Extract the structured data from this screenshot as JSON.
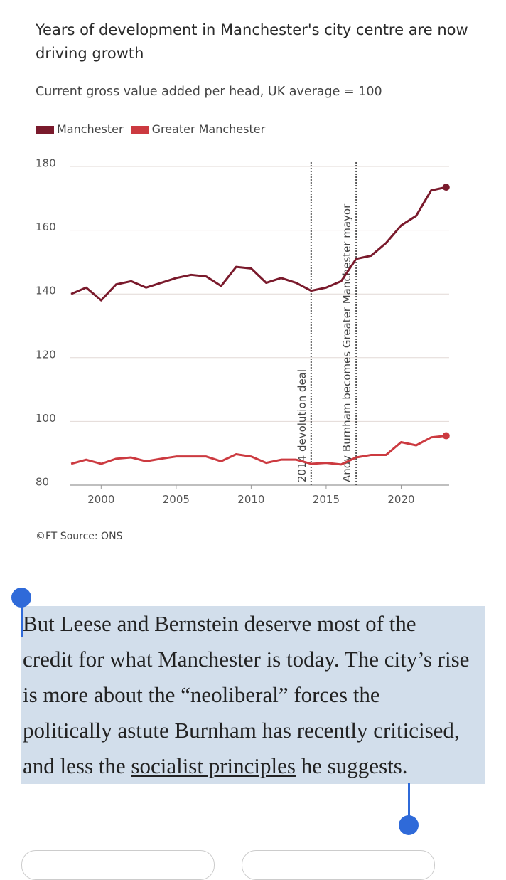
{
  "chart_data": {
    "type": "line",
    "title": "Years of development in Manchester's city centre are now driving growth",
    "subtitle": "Current gross value added per head, UK average = 100",
    "x": [
      1998,
      1999,
      2000,
      2001,
      2002,
      2003,
      2004,
      2005,
      2006,
      2007,
      2008,
      2009,
      2010,
      2011,
      2012,
      2013,
      2014,
      2015,
      2016,
      2017,
      2018,
      2019,
      2020,
      2021,
      2022,
      2023
    ],
    "series": [
      {
        "name": "Manchester",
        "color": "#7a1a2c",
        "values": [
          140,
          142,
          138,
          143,
          144,
          142,
          143.5,
          145,
          146,
          145.5,
          142.5,
          148.5,
          148,
          143.5,
          145,
          143.5,
          141,
          142,
          144,
          151,
          152,
          156,
          161.5,
          164.5,
          172.5,
          173.5
        ]
      },
      {
        "name": "Greater Manchester",
        "color": "#cc3a40",
        "values": [
          86.7,
          88,
          86.7,
          88.3,
          88.7,
          87.5,
          88.3,
          89,
          89,
          89,
          87.5,
          89.7,
          89,
          87,
          88,
          88,
          86.7,
          87,
          86.5,
          88.7,
          89.5,
          89.5,
          93.5,
          92.5,
          95,
          95.5
        ]
      }
    ],
    "xlim": [
      1997.9,
      2023.2
    ],
    "xticks": [
      2000,
      2005,
      2010,
      2015,
      2020
    ],
    "ylim": [
      80,
      180
    ],
    "yticks": [
      80,
      100,
      120,
      140,
      160,
      180
    ],
    "grid": true,
    "annotations": [
      {
        "text": "2014 devolution deal",
        "x": 2014
      },
      {
        "text": "Andy Burnham becomes Greater Manchester mayor",
        "x": 2017
      }
    ],
    "source": "©FT Source: ONS"
  },
  "article": {
    "before": "But Leese and Bernstein deserve most of the credit for what Manchester is today. The city’s rise is more about the “neoliberal” forces the politically astute Burnham has recently criticised, and less the ",
    "link": "socialist principles",
    "after": " he suggests."
  }
}
